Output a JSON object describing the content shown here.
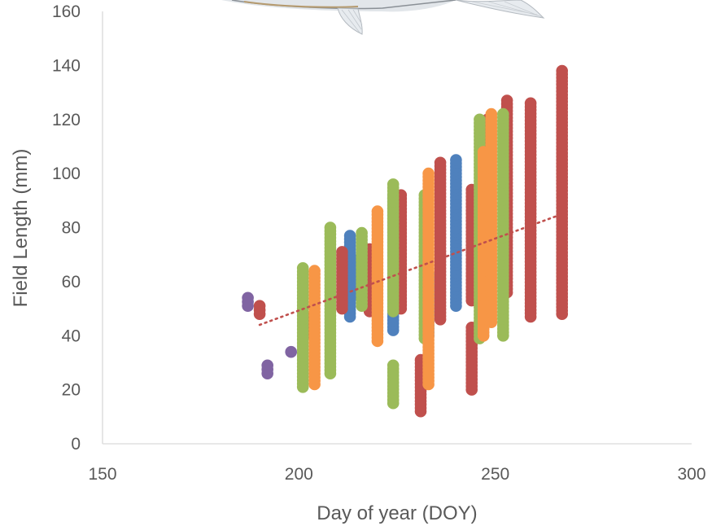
{
  "chart_data": {
    "type": "scatter",
    "xlabel": "Day of year (DOY)",
    "ylabel": "Field Length (mm)",
    "xlim": [
      150,
      300
    ],
    "ylim": [
      0,
      160
    ],
    "x_ticks": [
      "150",
      "200",
      "250",
      "300"
    ],
    "y_ticks": [
      "0",
      "20",
      "40",
      "60",
      "80",
      "100",
      "120",
      "140",
      "160"
    ],
    "grid": false,
    "legend": "none",
    "colors": {
      "blue": "#4f81bd",
      "red": "#c0504d",
      "green": "#9bbb59",
      "purple": "#8064a2",
      "orange": "#f79646",
      "trend": "#c0504d"
    },
    "series": [
      {
        "color": "blue",
        "columns": [
          {
            "x": 213,
            "min": 47,
            "max": 77
          },
          {
            "x": 215,
            "min": 55,
            "max": 68
          },
          {
            "x": 224,
            "min": 42,
            "max": 92
          },
          {
            "x": 233,
            "min": 40,
            "max": 63
          },
          {
            "x": 240,
            "min": 51,
            "max": 105
          }
        ]
      },
      {
        "color": "red",
        "columns": [
          {
            "x": 190,
            "min": 48,
            "max": 51
          },
          {
            "x": 203,
            "min": 41,
            "max": 47
          },
          {
            "x": 211,
            "min": 50,
            "max": 71
          },
          {
            "x": 218,
            "min": 49,
            "max": 72
          },
          {
            "x": 226,
            "min": 50,
            "max": 92
          },
          {
            "x": 231,
            "min": 12,
            "max": 31
          },
          {
            "x": 236,
            "min": 46,
            "max": 104
          },
          {
            "x": 244,
            "min": 20,
            "max": 43
          },
          {
            "x": 244,
            "min": 53,
            "max": 94
          },
          {
            "x": 248,
            "min": 47,
            "max": 120
          },
          {
            "x": 253,
            "min": 56,
            "max": 127
          },
          {
            "x": 259,
            "min": 47,
            "max": 126
          },
          {
            "x": 267,
            "min": 48,
            "max": 138
          }
        ]
      },
      {
        "color": "green",
        "columns": [
          {
            "x": 201,
            "min": 21,
            "max": 65
          },
          {
            "x": 208,
            "min": 26,
            "max": 80
          },
          {
            "x": 216,
            "min": 51,
            "max": 78
          },
          {
            "x": 224,
            "min": 15,
            "max": 29
          },
          {
            "x": 224,
            "min": 49,
            "max": 96
          },
          {
            "x": 232,
            "min": 39,
            "max": 92
          },
          {
            "x": 246,
            "min": 39,
            "max": 120
          },
          {
            "x": 252,
            "min": 40,
            "max": 122
          }
        ]
      },
      {
        "color": "purple",
        "columns": [
          {
            "x": 187,
            "min": 51,
            "max": 54
          },
          {
            "x": 192,
            "min": 26,
            "max": 29
          },
          {
            "x": 198,
            "min": 34,
            "max": 34
          }
        ]
      },
      {
        "color": "orange",
        "columns": [
          {
            "x": 204,
            "min": 22,
            "max": 64
          },
          {
            "x": 220,
            "min": 38,
            "max": 86
          },
          {
            "x": 233,
            "min": 22,
            "max": 100
          },
          {
            "x": 247,
            "min": 40,
            "max": 108
          },
          {
            "x": 249,
            "min": 45,
            "max": 122
          }
        ]
      }
    ],
    "trendline": {
      "color": "red",
      "x": [
        190,
        267
      ],
      "y": [
        44,
        85
      ]
    }
  }
}
